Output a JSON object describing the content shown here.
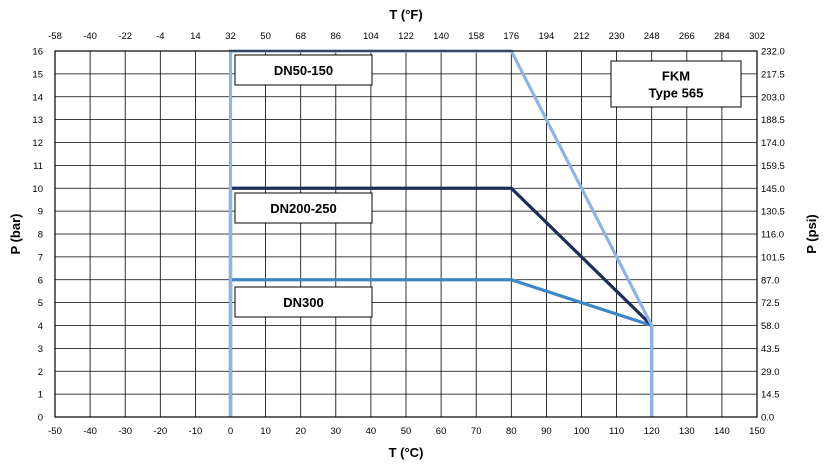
{
  "chart_data": {
    "type": "line",
    "x_bottom": {
      "label": "T (°C)",
      "range": [
        -50,
        150
      ],
      "ticks": [
        "-50",
        "-40",
        "-30",
        "-20",
        "-10",
        "0",
        "10",
        "20",
        "30",
        "40",
        "50",
        "60",
        "70",
        "80",
        "90",
        "100",
        "110",
        "120",
        "130",
        "140",
        "150"
      ]
    },
    "x_top": {
      "label": "T (°F)",
      "ticks": [
        "-58",
        "-40",
        "-22",
        "-4",
        "14",
        "32",
        "50",
        "68",
        "86",
        "104",
        "122",
        "140",
        "158",
        "176",
        "194",
        "212",
        "230",
        "248",
        "266",
        "284",
        "302"
      ]
    },
    "y_left": {
      "label": "P (bar)",
      "range": [
        0,
        16
      ],
      "ticks": [
        "0",
        "1",
        "2",
        "3",
        "4",
        "5",
        "6",
        "7",
        "8",
        "9",
        "10",
        "11",
        "12",
        "13",
        "14",
        "15",
        "16"
      ]
    },
    "y_right": {
      "label": "P (psi)",
      "ticks": [
        "0.0",
        "14.5",
        "29.0",
        "43.5",
        "58.0",
        "72.5",
        "87.0",
        "101.5",
        "116.0",
        "130.5",
        "145.0",
        "159.5",
        "174.0",
        "188.5",
        "203.0",
        "217.5",
        "232.0"
      ]
    },
    "grid": true,
    "series": [
      {
        "name": "DN50-150",
        "color": "#8db4e2",
        "x": [
          0,
          0,
          80,
          120,
          120
        ],
        "y": [
          0,
          16,
          16,
          4,
          0
        ]
      },
      {
        "name": "DN200-250",
        "color": "#1f2d5a",
        "x": [
          0,
          0,
          80,
          120
        ],
        "y": [
          0,
          10,
          10,
          4
        ]
      },
      {
        "name": "DN300",
        "color": "#3f86c8",
        "x": [
          0,
          0,
          80,
          120,
          120
        ],
        "y": [
          0,
          6,
          6,
          4,
          0
        ]
      }
    ],
    "annotations": [
      {
        "lines": [
          "DN50-150"
        ],
        "series": "DN50-150"
      },
      {
        "lines": [
          "DN200-250"
        ],
        "series": "DN200-250"
      },
      {
        "lines": [
          "DN300"
        ],
        "series": "DN300"
      },
      {
        "lines": [
          "FKM",
          "Type 565"
        ]
      }
    ]
  }
}
